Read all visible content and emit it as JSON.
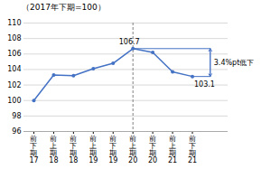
{
  "chart_data": {
    "type": "line",
    "subtitle": "（2017年下期=100）",
    "categories": [
      "前\n下\n期\n17",
      "前\n上\n期\n18",
      "前\n下\n期\n18",
      "前\n上\n期\n19",
      "前\n下\n期\n19",
      "前\n上\n期\n20",
      "前\n下\n期\n20",
      "前\n上\n期\n21",
      "前\n下\n期\n21"
    ],
    "values": [
      100.0,
      103.3,
      103.2,
      104.1,
      104.8,
      106.7,
      106.2,
      103.7,
      103.1
    ],
    "color": "#4472C4",
    "marker": "circle",
    "ylim": [
      96,
      110
    ],
    "yticks": [
      96,
      98,
      100,
      102,
      104,
      106,
      108,
      110
    ],
    "grid": true,
    "annotations": [
      {
        "type": "vline",
        "category_index": 5,
        "color": "#808080",
        "line_style": "dashed"
      },
      {
        "type": "label",
        "text": "106.7",
        "category_index": 5,
        "value": 106.7
      },
      {
        "type": "label",
        "text": "103.1",
        "category_index": 8,
        "value": 103.1
      },
      {
        "type": "range_arrow",
        "text": "3.4%pt低下",
        "color": "#4472C4",
        "from": {
          "category_index": 5,
          "value": 106.7
        },
        "to": {
          "category_index": 8,
          "value": 103.1
        }
      }
    ]
  }
}
